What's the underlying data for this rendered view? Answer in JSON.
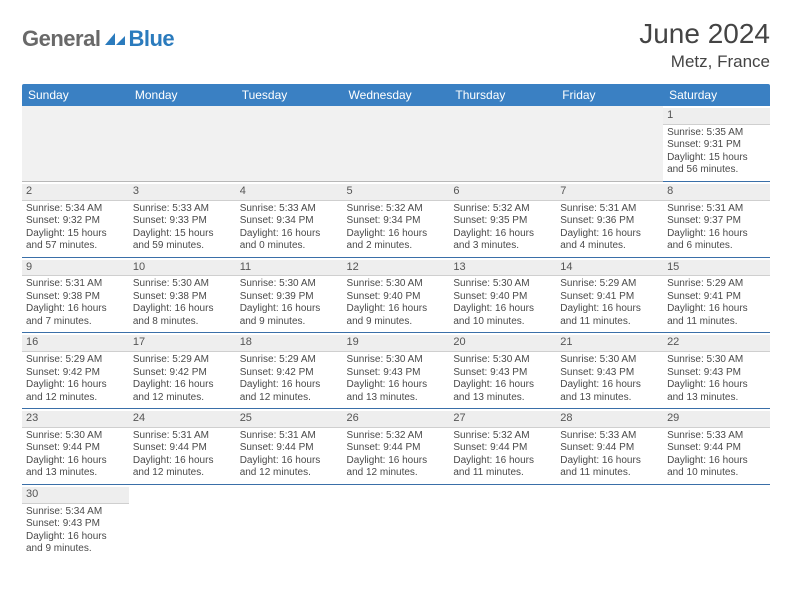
{
  "brand": {
    "part1": "General",
    "part2": "Blue"
  },
  "title": "June 2024",
  "location": "Metz, France",
  "colors": {
    "header_bg": "#3a80c3",
    "header_text": "#ffffff",
    "row_divider": "#3a6fa8",
    "daynum_bg": "#eeeeee",
    "logo_gray": "#696969",
    "logo_blue": "#2b7bbd"
  },
  "weekdays": [
    "Sunday",
    "Monday",
    "Tuesday",
    "Wednesday",
    "Thursday",
    "Friday",
    "Saturday"
  ],
  "weeks": [
    [
      null,
      null,
      null,
      null,
      null,
      null,
      {
        "d": "1",
        "r": "5:35 AM",
        "s": "9:31 PM",
        "dl": "15 hours and 56 minutes."
      }
    ],
    [
      {
        "d": "2",
        "r": "5:34 AM",
        "s": "9:32 PM",
        "dl": "15 hours and 57 minutes."
      },
      {
        "d": "3",
        "r": "5:33 AM",
        "s": "9:33 PM",
        "dl": "15 hours and 59 minutes."
      },
      {
        "d": "4",
        "r": "5:33 AM",
        "s": "9:34 PM",
        "dl": "16 hours and 0 minutes."
      },
      {
        "d": "5",
        "r": "5:32 AM",
        "s": "9:34 PM",
        "dl": "16 hours and 2 minutes."
      },
      {
        "d": "6",
        "r": "5:32 AM",
        "s": "9:35 PM",
        "dl": "16 hours and 3 minutes."
      },
      {
        "d": "7",
        "r": "5:31 AM",
        "s": "9:36 PM",
        "dl": "16 hours and 4 minutes."
      },
      {
        "d": "8",
        "r": "5:31 AM",
        "s": "9:37 PM",
        "dl": "16 hours and 6 minutes."
      }
    ],
    [
      {
        "d": "9",
        "r": "5:31 AM",
        "s": "9:38 PM",
        "dl": "16 hours and 7 minutes."
      },
      {
        "d": "10",
        "r": "5:30 AM",
        "s": "9:38 PM",
        "dl": "16 hours and 8 minutes."
      },
      {
        "d": "11",
        "r": "5:30 AM",
        "s": "9:39 PM",
        "dl": "16 hours and 9 minutes."
      },
      {
        "d": "12",
        "r": "5:30 AM",
        "s": "9:40 PM",
        "dl": "16 hours and 9 minutes."
      },
      {
        "d": "13",
        "r": "5:30 AM",
        "s": "9:40 PM",
        "dl": "16 hours and 10 minutes."
      },
      {
        "d": "14",
        "r": "5:29 AM",
        "s": "9:41 PM",
        "dl": "16 hours and 11 minutes."
      },
      {
        "d": "15",
        "r": "5:29 AM",
        "s": "9:41 PM",
        "dl": "16 hours and 11 minutes."
      }
    ],
    [
      {
        "d": "16",
        "r": "5:29 AM",
        "s": "9:42 PM",
        "dl": "16 hours and 12 minutes."
      },
      {
        "d": "17",
        "r": "5:29 AM",
        "s": "9:42 PM",
        "dl": "16 hours and 12 minutes."
      },
      {
        "d": "18",
        "r": "5:29 AM",
        "s": "9:42 PM",
        "dl": "16 hours and 12 minutes."
      },
      {
        "d": "19",
        "r": "5:30 AM",
        "s": "9:43 PM",
        "dl": "16 hours and 13 minutes."
      },
      {
        "d": "20",
        "r": "5:30 AM",
        "s": "9:43 PM",
        "dl": "16 hours and 13 minutes."
      },
      {
        "d": "21",
        "r": "5:30 AM",
        "s": "9:43 PM",
        "dl": "16 hours and 13 minutes."
      },
      {
        "d": "22",
        "r": "5:30 AM",
        "s": "9:43 PM",
        "dl": "16 hours and 13 minutes."
      }
    ],
    [
      {
        "d": "23",
        "r": "5:30 AM",
        "s": "9:44 PM",
        "dl": "16 hours and 13 minutes."
      },
      {
        "d": "24",
        "r": "5:31 AM",
        "s": "9:44 PM",
        "dl": "16 hours and 12 minutes."
      },
      {
        "d": "25",
        "r": "5:31 AM",
        "s": "9:44 PM",
        "dl": "16 hours and 12 minutes."
      },
      {
        "d": "26",
        "r": "5:32 AM",
        "s": "9:44 PM",
        "dl": "16 hours and 12 minutes."
      },
      {
        "d": "27",
        "r": "5:32 AM",
        "s": "9:44 PM",
        "dl": "16 hours and 11 minutes."
      },
      {
        "d": "28",
        "r": "5:33 AM",
        "s": "9:44 PM",
        "dl": "16 hours and 11 minutes."
      },
      {
        "d": "29",
        "r": "5:33 AM",
        "s": "9:44 PM",
        "dl": "16 hours and 10 minutes."
      }
    ],
    [
      {
        "d": "30",
        "r": "5:34 AM",
        "s": "9:43 PM",
        "dl": "16 hours and 9 minutes."
      },
      null,
      null,
      null,
      null,
      null,
      null
    ]
  ],
  "labels": {
    "sunrise": "Sunrise: ",
    "sunset": "Sunset: ",
    "daylight": "Daylight: "
  }
}
